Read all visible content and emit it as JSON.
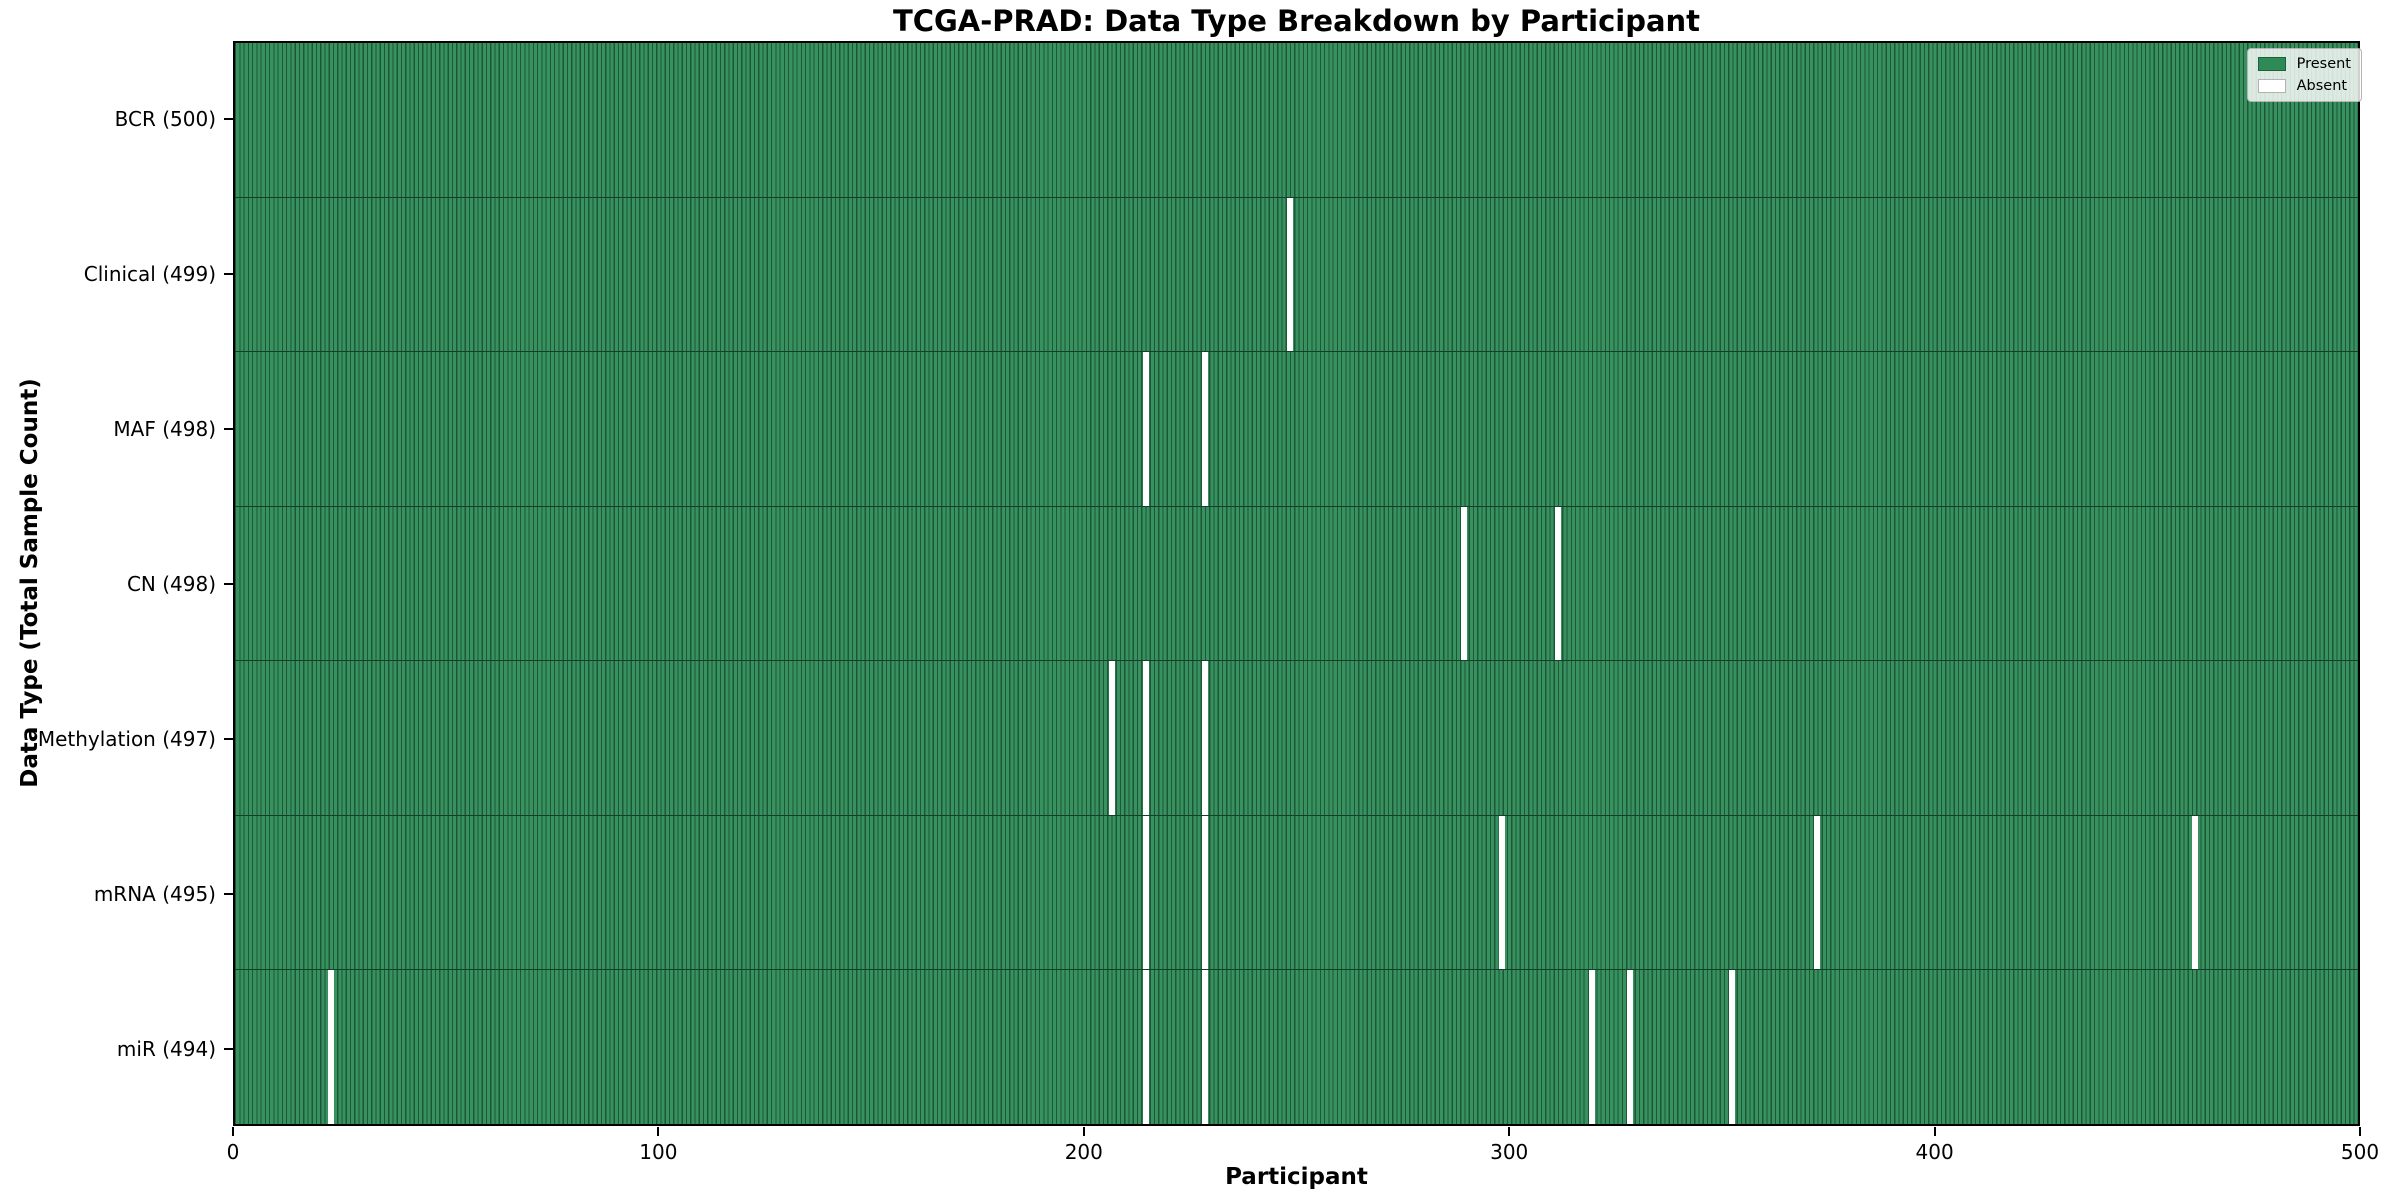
{
  "chart_data": {
    "type": "heatmap",
    "title": "TCGA-PRAD: Data Type Breakdown by Participant",
    "xlabel": "Participant",
    "ylabel": "Data Type (Total Sample Count)",
    "xlim": [
      0,
      500
    ],
    "x_ticks": [
      0,
      100,
      200,
      300,
      400,
      500
    ],
    "n_participants": 500,
    "grid": false,
    "legend": {
      "position": "upper right",
      "entries": [
        {
          "label": "Present",
          "color": "#2e8b57"
        },
        {
          "label": "Absent",
          "color": "#ffffff"
        }
      ]
    },
    "colors": {
      "present_fill": "#38925f",
      "bar_edge": "#1d5737",
      "absent_fill": "#ffffff"
    },
    "rows": [
      {
        "label": "BCR (500)",
        "total_samples": 500,
        "absent_participants": []
      },
      {
        "label": "Clinical (499)",
        "total_samples": 499,
        "absent_participants": [
          248
        ]
      },
      {
        "label": "MAF (498)",
        "total_samples": 498,
        "absent_participants": [
          214,
          228
        ]
      },
      {
        "label": "CN (498)",
        "total_samples": 498,
        "absent_participants": [
          289,
          311
        ]
      },
      {
        "label": "Methylation (497)",
        "total_samples": 497,
        "absent_participants": [
          206,
          214,
          228
        ]
      },
      {
        "label": "mRNA (495)",
        "total_samples": 495,
        "absent_participants": [
          214,
          228,
          298,
          372,
          461
        ]
      },
      {
        "label": "miR (494)",
        "total_samples": 494,
        "absent_participants": [
          22,
          214,
          228,
          319,
          328,
          352
        ]
      }
    ]
  }
}
